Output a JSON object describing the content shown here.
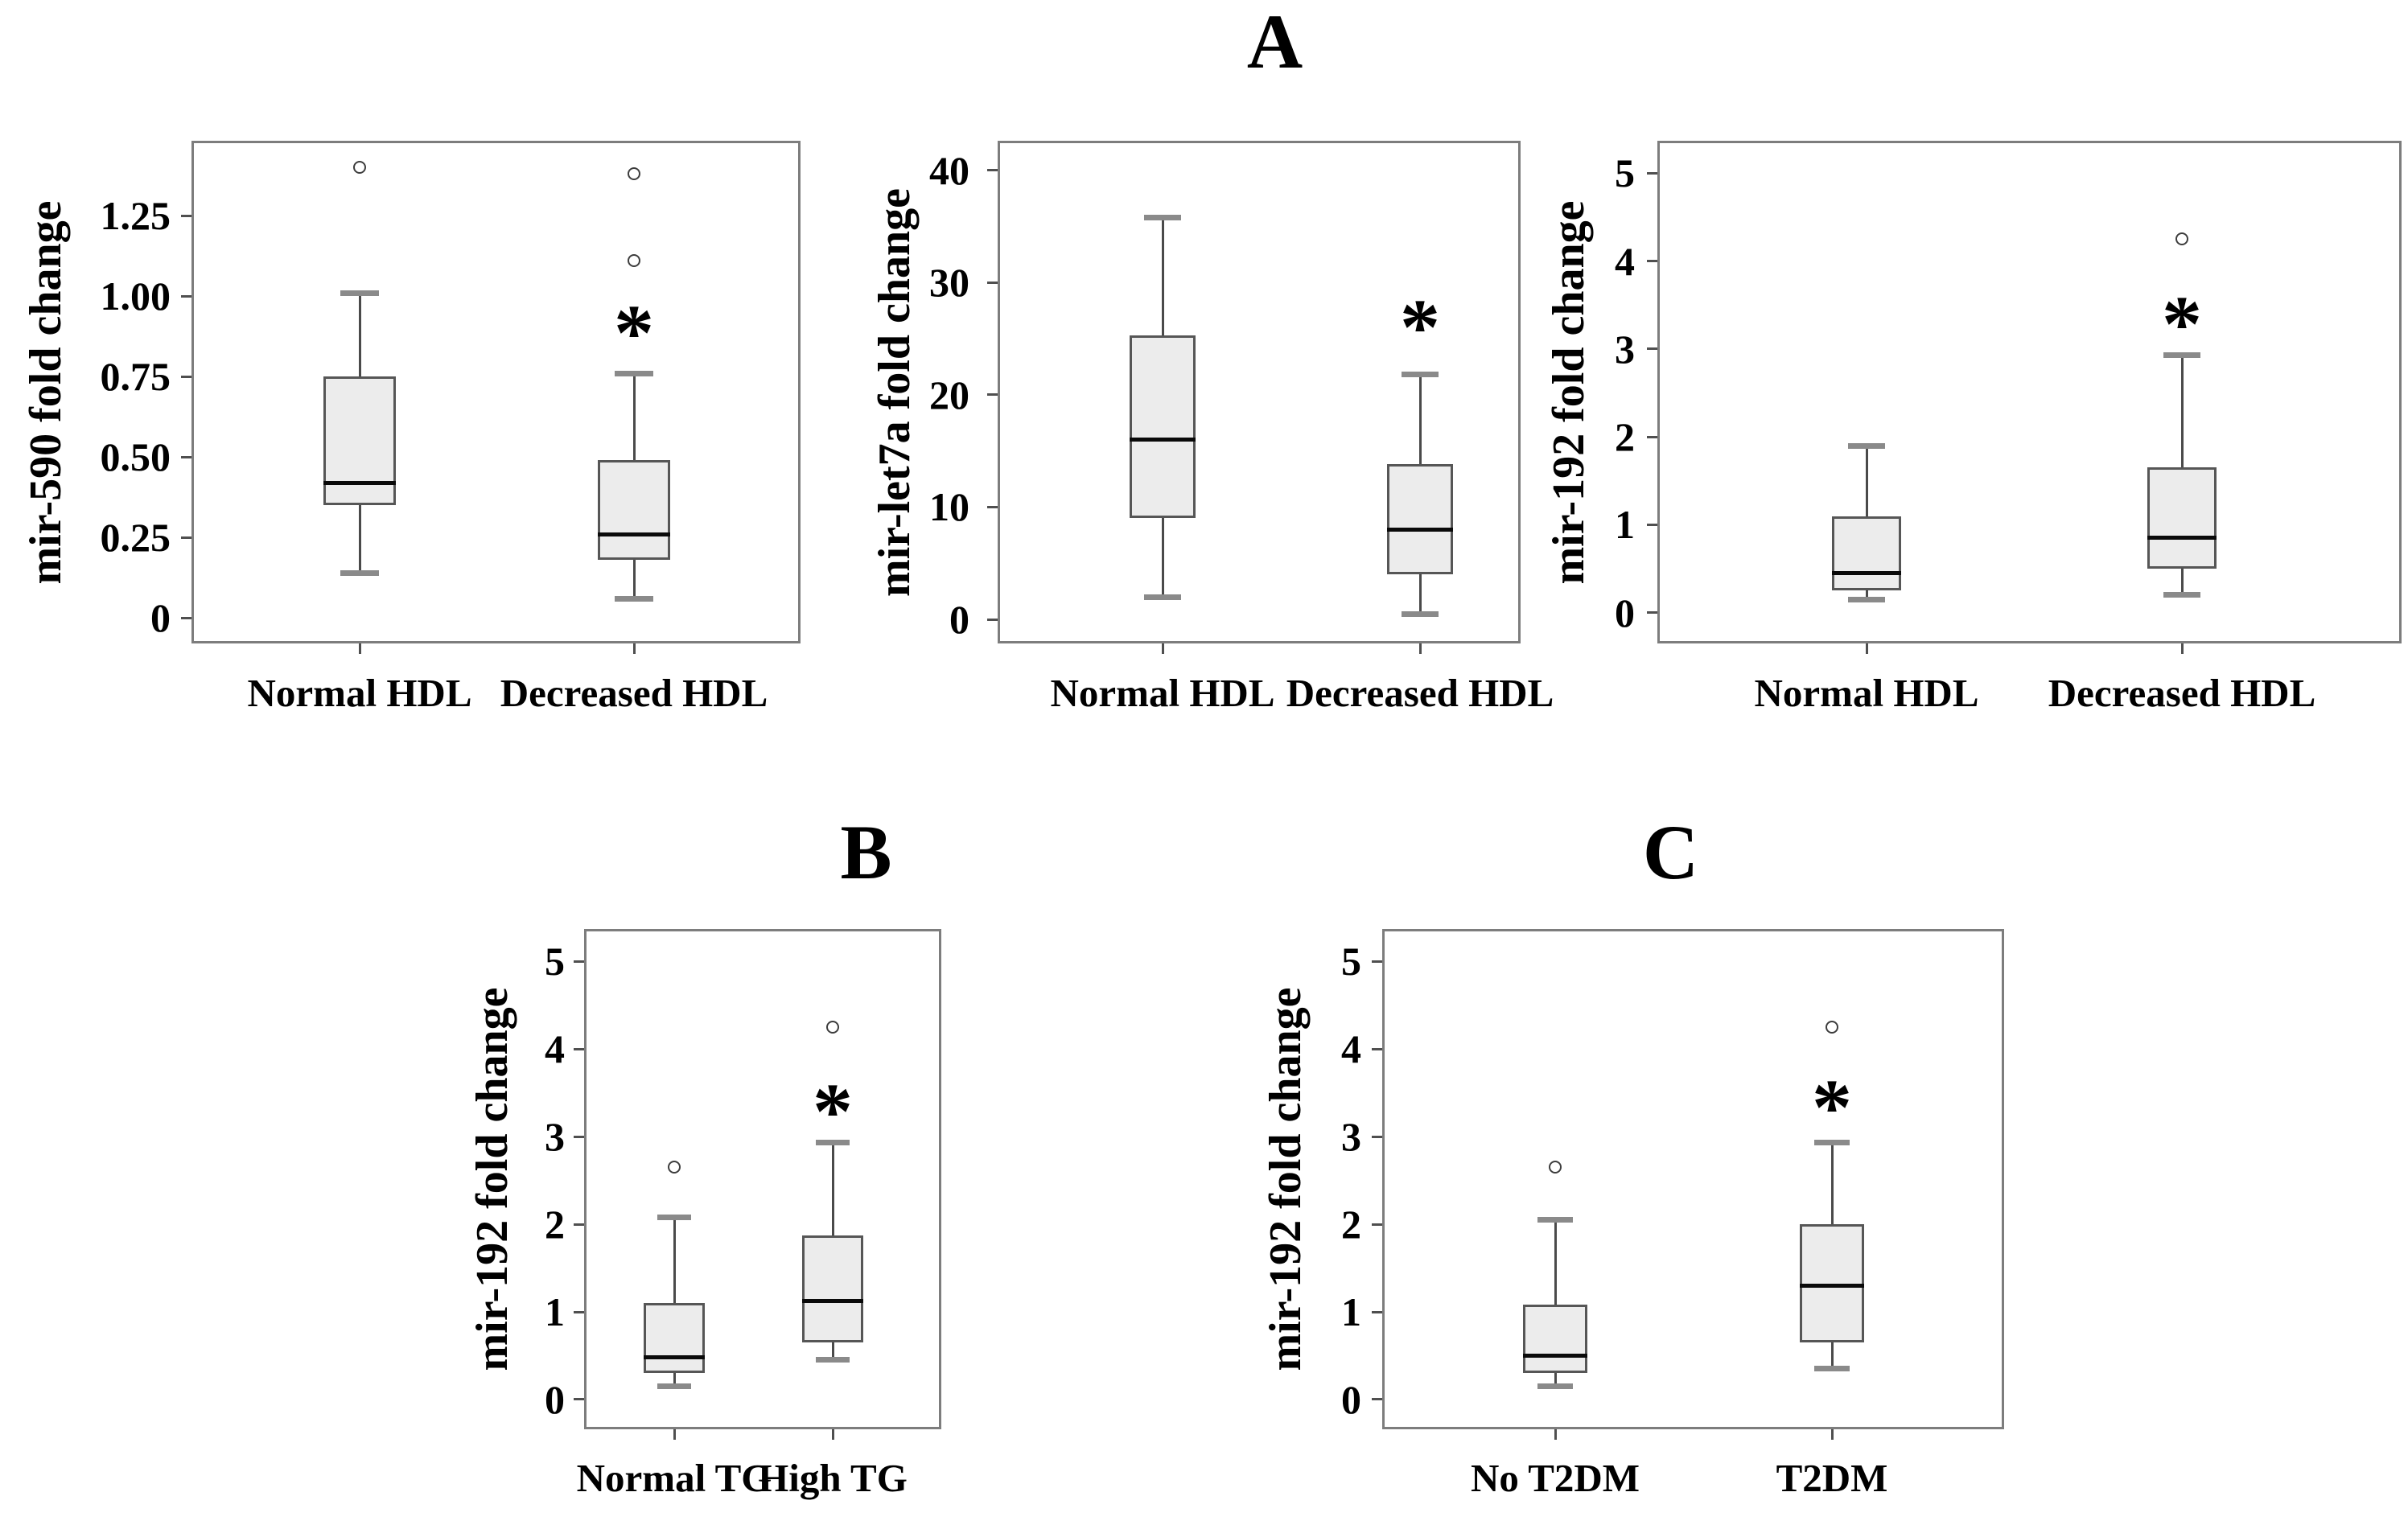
{
  "figure": {
    "panel_labels": [
      "A",
      "B",
      "C"
    ]
  },
  "chart_data": [
    {
      "id": "A1",
      "panel": "A",
      "type": "box",
      "title": "",
      "ylabel": "mir-590 fold change",
      "xlabel": "",
      "ylim": [
        -0.08,
        1.4825
      ],
      "yticks": [
        0,
        0.25,
        0.5,
        0.75,
        1.0,
        1.25
      ],
      "ytick_labels": [
        "0",
        "0.25",
        "0.50",
        "0.75",
        "1.00",
        "1.25"
      ],
      "grid": false,
      "legend": null,
      "categories": [
        "Normal HDL",
        "Decreased HDL"
      ],
      "series": [
        {
          "category": "Normal HDL",
          "whisker_low": 0.14,
          "q1": 0.35,
          "median": 0.42,
          "q3": 0.75,
          "whisker_high": 1.01,
          "outliers": [
            1.4
          ],
          "significance": null,
          "significance_y": null
        },
        {
          "category": "Decreased HDL",
          "whisker_low": 0.06,
          "q1": 0.18,
          "median": 0.26,
          "q3": 0.49,
          "whisker_high": 0.76,
          "outliers": [
            1.38,
            1.11
          ],
          "significance": "*",
          "significance_y": 0.93
        }
      ]
    },
    {
      "id": "A2",
      "panel": "A",
      "type": "box",
      "title": "",
      "ylabel": "mir-let7a fold change",
      "xlabel": "",
      "ylim": [
        -2.15,
        42.65
      ],
      "yticks": [
        0,
        10,
        20,
        30,
        40
      ],
      "ytick_labels": [
        "0",
        "10",
        "20",
        "30",
        "40"
      ],
      "grid": false,
      "legend": null,
      "categories": [
        "Normal HDL",
        "Decreased HDL"
      ],
      "series": [
        {
          "category": "Normal HDL",
          "whisker_low": 2.0,
          "q1": 9.0,
          "median": 16.0,
          "q3": 25.3,
          "whisker_high": 35.8,
          "outliers": [],
          "significance": null,
          "significance_y": null
        },
        {
          "category": "Decreased HDL",
          "whisker_low": 0.5,
          "q1": 4.0,
          "median": 8.0,
          "q3": 13.8,
          "whisker_high": 21.8,
          "outliers": [],
          "significance": "*",
          "significance_y": 27.3
        }
      ]
    },
    {
      "id": "A3",
      "panel": "A",
      "type": "box",
      "title": "",
      "ylabel": "mir-192 fold change",
      "xlabel": "",
      "ylim": [
        -0.35,
        5.37
      ],
      "yticks": [
        0,
        1,
        2,
        3,
        4,
        5
      ],
      "ytick_labels": [
        "0",
        "1",
        "2",
        "3",
        "4",
        "5"
      ],
      "grid": false,
      "legend": null,
      "categories": [
        "Normal HDL",
        "Decreased HDL"
      ],
      "series": [
        {
          "category": "Normal HDL",
          "whisker_low": 0.15,
          "q1": 0.25,
          "median": 0.45,
          "q3": 1.1,
          "whisker_high": 1.9,
          "outliers": [],
          "significance": null,
          "significance_y": null
        },
        {
          "category": "Decreased HDL",
          "whisker_low": 0.2,
          "q1": 0.5,
          "median": 0.85,
          "q3": 1.65,
          "whisker_high": 2.93,
          "outliers": [
            4.25
          ],
          "significance": "*",
          "significance_y": 3.45
        }
      ]
    },
    {
      "id": "B",
      "panel": "B",
      "type": "box",
      "title": "",
      "ylabel": "mir-192 fold change",
      "xlabel": "",
      "ylim": [
        -0.34,
        5.37
      ],
      "yticks": [
        0,
        1,
        2,
        3,
        4,
        5
      ],
      "ytick_labels": [
        "0",
        "1",
        "2",
        "3",
        "4",
        "5"
      ],
      "grid": false,
      "legend": null,
      "categories": [
        "Normal TG",
        "High TG"
      ],
      "series": [
        {
          "category": "Normal TG",
          "whisker_low": 0.15,
          "q1": 0.3,
          "median": 0.48,
          "q3": 1.1,
          "whisker_high": 2.08,
          "outliers": [
            2.65
          ],
          "significance": null,
          "significance_y": null
        },
        {
          "category": "High TG",
          "whisker_low": 0.45,
          "q1": 0.65,
          "median": 1.12,
          "q3": 1.87,
          "whisker_high": 2.93,
          "outliers": [
            4.25
          ],
          "significance": "*",
          "significance_y": 3.45
        }
      ]
    },
    {
      "id": "C",
      "panel": "C",
      "type": "box",
      "title": "",
      "ylabel": "mir-192 fold change",
      "xlabel": "",
      "ylim": [
        -0.34,
        5.37
      ],
      "yticks": [
        0,
        1,
        2,
        3,
        4,
        5
      ],
      "ytick_labels": [
        "0",
        "1",
        "2",
        "3",
        "4",
        "5"
      ],
      "grid": false,
      "legend": null,
      "categories": [
        "No T2DM",
        "T2DM"
      ],
      "series": [
        {
          "category": "No T2DM",
          "whisker_low": 0.15,
          "q1": 0.3,
          "median": 0.5,
          "q3": 1.08,
          "whisker_high": 2.05,
          "outliers": [
            2.65
          ],
          "significance": null,
          "significance_y": null
        },
        {
          "category": "T2DM",
          "whisker_low": 0.35,
          "q1": 0.65,
          "median": 1.3,
          "q3": 2.0,
          "whisker_high": 2.93,
          "outliers": [
            4.25
          ],
          "significance": "*",
          "significance_y": 3.5
        }
      ]
    }
  ]
}
